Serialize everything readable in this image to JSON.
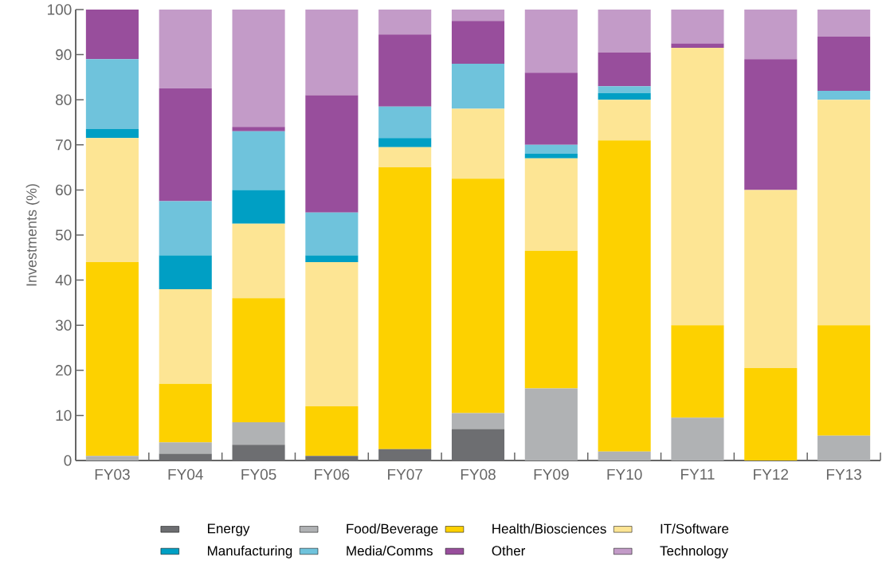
{
  "chart_data": {
    "type": "bar",
    "stacked": true,
    "ylabel": "Investments (%)",
    "categories": [
      "FY03",
      "FY04",
      "FY05",
      "FY06",
      "FY07",
      "FY08",
      "FY09",
      "FY10",
      "FY11",
      "FY12",
      "FY13"
    ],
    "ylim": [
      0,
      100
    ],
    "yticks": [
      0,
      10,
      20,
      30,
      40,
      50,
      60,
      70,
      80,
      90,
      100
    ],
    "grid": false,
    "legend": "bottom",
    "series": [
      {
        "name": "Energy",
        "color": "#6d6e71",
        "values": [
          0,
          1.5,
          3.5,
          1,
          2.5,
          7,
          0,
          0,
          0,
          0,
          0
        ]
      },
      {
        "name": "Food/Beverage",
        "color": "#b0b2b4",
        "values": [
          1,
          2.5,
          5,
          0,
          0,
          3.5,
          16,
          2,
          9.5,
          0,
          5.5
        ]
      },
      {
        "name": "Health/Biosciences",
        "color": "#fdd100",
        "values": [
          43,
          13,
          27.5,
          11,
          62.5,
          52,
          30.5,
          69,
          20.5,
          20.5,
          24.5
        ]
      },
      {
        "name": "IT/Software",
        "color": "#fde594",
        "values": [
          27.5,
          21,
          16.5,
          32,
          4.5,
          15.5,
          20.5,
          9,
          61.5,
          39.5,
          50
        ]
      },
      {
        "name": "Manufacturing",
        "color": "#009fc4",
        "values": [
          2,
          7.5,
          7.5,
          1.5,
          2,
          0,
          1,
          1.5,
          0,
          0,
          0
        ]
      },
      {
        "name": "Media/Comms",
        "color": "#6fc3dc",
        "values": [
          15.5,
          12,
          13,
          9.5,
          7,
          10,
          2,
          1.5,
          0,
          0,
          2
        ]
      },
      {
        "name": "Other",
        "color": "#984e9c",
        "values": [
          11,
          25,
          1,
          26,
          16,
          9.5,
          16,
          7.5,
          1,
          29,
          12
        ]
      },
      {
        "name": "Technology",
        "color": "#c39bc8",
        "values": [
          0,
          17.5,
          26,
          19,
          5.5,
          2.5,
          14,
          9.5,
          7.5,
          11,
          6
        ]
      }
    ]
  }
}
